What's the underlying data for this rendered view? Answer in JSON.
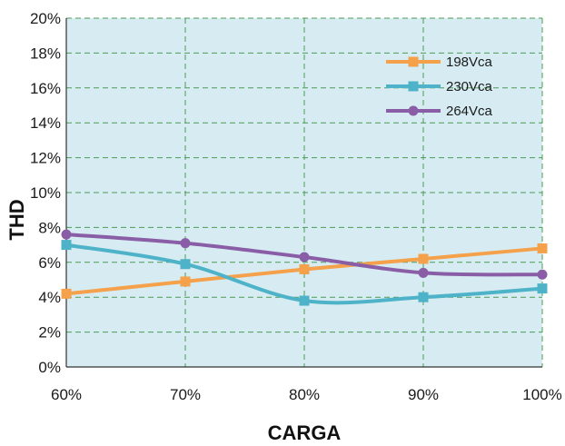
{
  "chart_data": {
    "type": "line",
    "categories": [
      "60%",
      "70%",
      "80%",
      "90%",
      "100%"
    ],
    "series": [
      {
        "name": "198Vca",
        "values": [
          4.2,
          4.9,
          5.6,
          6.2,
          6.8
        ],
        "color": "#f5a04a",
        "marker": "square"
      },
      {
        "name": "230Vca",
        "values": [
          7.0,
          5.9,
          3.8,
          4.0,
          4.5
        ],
        "color": "#4eb3c8",
        "marker": "square"
      },
      {
        "name": "264Vca",
        "values": [
          7.6,
          7.1,
          6.3,
          5.4,
          5.3
        ],
        "color": "#8a5ea6",
        "marker": "circle"
      }
    ],
    "y_ticks": [
      "0%",
      "2%",
      "4%",
      "6%",
      "8%",
      "10%",
      "12%",
      "14%",
      "16%",
      "18%",
      "20%"
    ],
    "xlabel": "CARGA",
    "ylabel": "THD",
    "ylim": [
      0,
      20
    ],
    "grid": true,
    "legend_position": "top-right",
    "plot_background": "#d6ecf2",
    "grid_color": "#4c9a55"
  }
}
